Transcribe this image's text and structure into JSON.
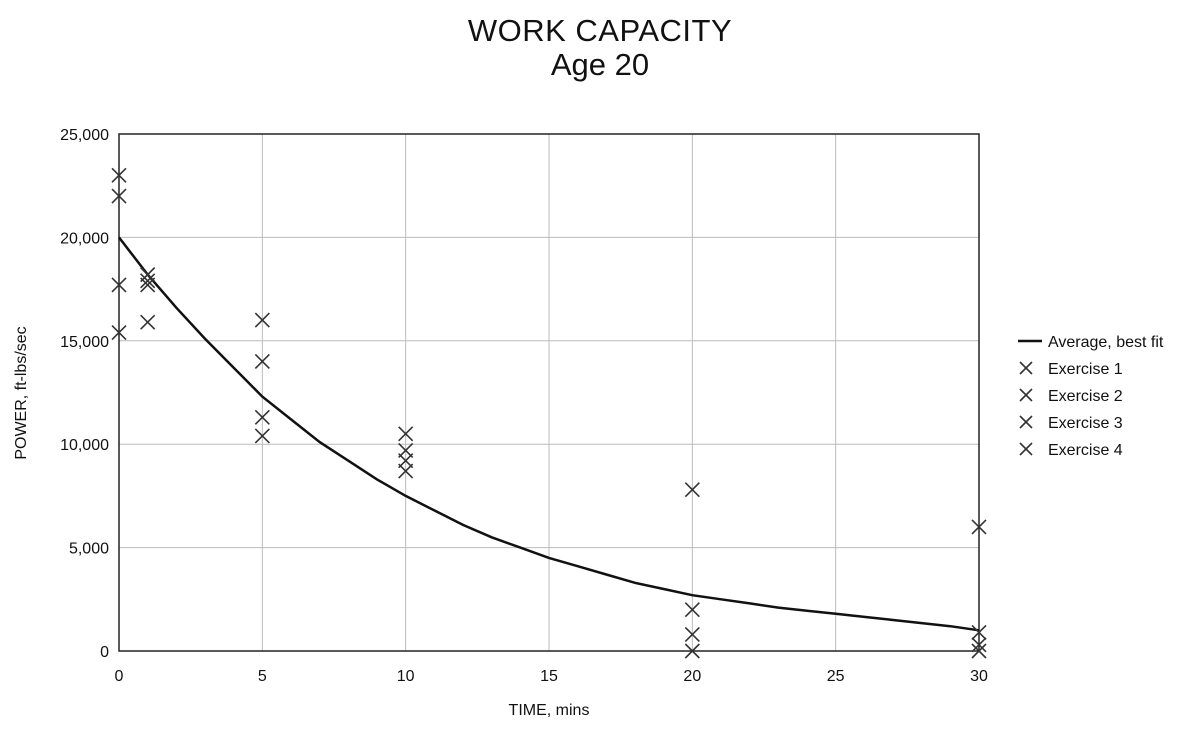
{
  "chart_data": {
    "type": "scatter",
    "title": "WORK CAPACITY",
    "subtitle": "Age 20",
    "xlabel": "TIME, mins",
    "ylabel": "POWER, ft-lbs/sec",
    "xlim": [
      0,
      30
    ],
    "ylim": [
      0,
      25000
    ],
    "xticks": [
      "0",
      "5",
      "10",
      "15",
      "20",
      "25",
      "30"
    ],
    "yticks": [
      "0",
      "5,000",
      "10,000",
      "15,000",
      "20,000",
      "25,000"
    ],
    "grid": true,
    "legend_position": "right",
    "fit": {
      "name": "Average, best fit",
      "x": [
        0,
        1,
        2,
        3,
        4,
        5,
        6,
        7,
        8,
        9,
        10,
        11,
        12,
        13,
        14,
        15,
        16,
        17,
        18,
        19,
        20,
        21,
        22,
        23,
        24,
        25,
        26,
        27,
        28,
        29,
        30
      ],
      "y": [
        20000,
        18200,
        16600,
        15100,
        13700,
        12300,
        11200,
        10100,
        9200,
        8300,
        7500,
        6800,
        6100,
        5500,
        5000,
        4500,
        4100,
        3700,
        3300,
        3000,
        2700,
        2500,
        2300,
        2100,
        1950,
        1800,
        1650,
        1500,
        1350,
        1200,
        1000
      ]
    },
    "series": [
      {
        "name": "Exercise 1",
        "points": [
          [
            0,
            23000
          ],
          [
            1,
            18200
          ],
          [
            5,
            16000
          ],
          [
            10,
            10500
          ],
          [
            20,
            7800
          ],
          [
            30,
            6000
          ]
        ]
      },
      {
        "name": "Exercise 2",
        "points": [
          [
            0,
            22000
          ],
          [
            1,
            17900
          ],
          [
            5,
            14000
          ],
          [
            10,
            9700
          ],
          [
            20,
            2000
          ],
          [
            30,
            900
          ]
        ]
      },
      {
        "name": "Exercise 3",
        "points": [
          [
            0,
            17700
          ],
          [
            1,
            17700
          ],
          [
            5,
            11300
          ],
          [
            10,
            9200
          ],
          [
            20,
            800
          ],
          [
            30,
            300
          ]
        ]
      },
      {
        "name": "Exercise 4",
        "points": [
          [
            0,
            15400
          ],
          [
            1,
            15900
          ],
          [
            5,
            10400
          ],
          [
            10,
            8700
          ],
          [
            20,
            0
          ],
          [
            30,
            0
          ]
        ]
      }
    ],
    "colors": {
      "marker": "#333333",
      "line": "#111111",
      "grid": "#bbbbbb",
      "frame": "#222222"
    }
  }
}
